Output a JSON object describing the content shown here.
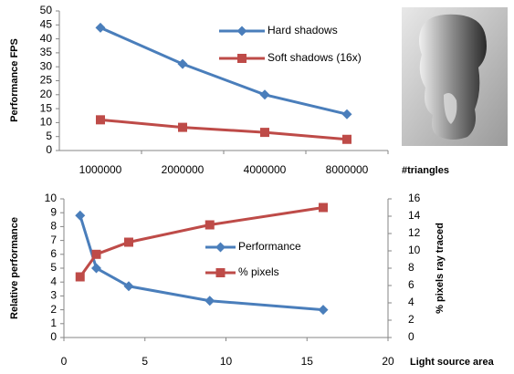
{
  "chart_data": [
    {
      "type": "line",
      "categories": [
        "1000000",
        "2000000",
        "4000000",
        "8000000"
      ],
      "x_label": "#triangles",
      "y_label": "Performance FPS",
      "ylim": [
        0,
        50
      ],
      "yticks": [
        0,
        5,
        10,
        15,
        20,
        25,
        30,
        35,
        40,
        45,
        50
      ],
      "grid": false,
      "series": [
        {
          "name": "Hard shadows",
          "color": "#4a7ebb",
          "marker": "diamond",
          "values": [
            44,
            31,
            20,
            13
          ]
        },
        {
          "name": "Soft shadows (16x)",
          "color": "#be4b48",
          "marker": "square",
          "values": [
            11,
            8.3,
            6.5,
            4
          ]
        }
      ]
    },
    {
      "type": "line",
      "x_label": "Light source area",
      "y_label": "Relative performance",
      "y2_label": "% pixels ray traced",
      "xlim": [
        0,
        20
      ],
      "xticks": [
        0,
        5,
        10,
        15,
        20
      ],
      "ylim": [
        0,
        10
      ],
      "yticks": [
        0,
        1,
        2,
        3,
        4,
        5,
        6,
        7,
        8,
        9,
        10
      ],
      "y2lim": [
        0,
        16
      ],
      "y2ticks": [
        0,
        2,
        4,
        6,
        8,
        10,
        12,
        14,
        16
      ],
      "grid": false,
      "series": [
        {
          "name": "Performance",
          "color": "#4a7ebb",
          "marker": "diamond",
          "x": [
            1,
            2,
            4,
            9,
            16
          ],
          "values": [
            8.8,
            5,
            3.7,
            2.65,
            2
          ]
        },
        {
          "name": "% pixels",
          "color": "#be4b48",
          "marker": "square",
          "axis": "y2",
          "x": [
            1,
            2,
            4,
            9,
            16
          ],
          "values": [
            7,
            9.6,
            11,
            13,
            15
          ]
        }
      ]
    }
  ]
}
